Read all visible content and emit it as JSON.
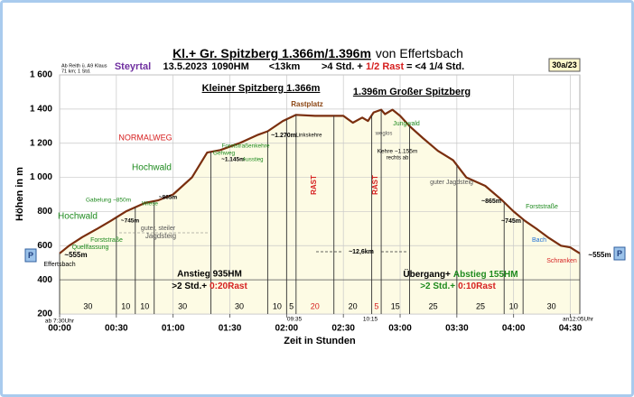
{
  "chart_data": {
    "type": "line",
    "title": "Kl.+ Gr. Spitzberg 1.366m/1.396m",
    "title_suffix": "von Effertsbach",
    "subtitle_parts": [
      {
        "text": "Steyrtal",
        "color": "#7030a0"
      },
      {
        "text": "13.5.2023",
        "color": "#000000"
      },
      {
        "text": "1090HM",
        "color": "#000000"
      },
      {
        "text": "<13km",
        "color": "#000000"
      },
      {
        "text": ">4 Std. +",
        "color": "#000000"
      },
      {
        "text": "1/2 Rast",
        "color": "#d62020"
      },
      {
        "text": "= <4 1/4 Std.",
        "color": "#000000"
      }
    ],
    "badge": "30a/23",
    "parking": [
      "P",
      "P"
    ],
    "y_label": "Höhen in m",
    "x_label": "Zeit in Stunden",
    "xlim": [
      0,
      275
    ],
    "ylim": [
      200,
      1600
    ],
    "xticks": [
      {
        "value": 0,
        "label": "00:00"
      },
      {
        "value": 30,
        "label": "00:30"
      },
      {
        "value": 60,
        "label": "01:00"
      },
      {
        "value": 90,
        "label": "01:30"
      },
      {
        "value": 120,
        "label": "02:00"
      },
      {
        "value": 150,
        "label": "02:30"
      },
      {
        "value": 180,
        "label": "03:00"
      },
      {
        "value": 210,
        "label": "03:30"
      },
      {
        "value": 240,
        "label": "04:00"
      },
      {
        "value": 270,
        "label": "04:30"
      }
    ],
    "yticks": [
      200,
      400,
      600,
      800,
      {
        "value": 1000,
        "label": "1 000"
      },
      {
        "value": 1200,
        "label": "1 200"
      },
      {
        "value": 1400,
        "label": "1 400"
      },
      {
        "value": 1600,
        "label": "1 600"
      }
    ],
    "grid": true,
    "x": [
      0,
      5,
      12,
      20,
      27,
      35,
      45,
      52,
      60,
      70,
      78,
      85,
      95,
      105,
      110,
      118,
      125,
      135,
      140,
      145,
      150,
      155,
      160,
      163,
      166,
      170,
      172,
      176,
      180,
      185,
      192,
      200,
      208,
      215,
      225,
      234,
      240,
      246,
      252,
      258,
      265,
      270,
      275
    ],
    "series": [
      {
        "name": "Höhenprofil",
        "color": "#7a2e0e",
        "values": [
          555,
          600,
          650,
          700,
          745,
          800,
          850,
          865,
          900,
          1000,
          1145,
          1160,
          1200,
          1250,
          1270,
          1330,
          1366,
          1360,
          1360,
          1360,
          1360,
          1320,
          1350,
          1330,
          1380,
          1396,
          1370,
          1396,
          1360,
          1300,
          1230,
          1155,
          1100,
          1000,
          950,
          865,
          800,
          745,
          700,
          650,
          600,
          590,
          555
        ]
      }
    ],
    "area_color": "#fdfbe4",
    "segments": [
      {
        "value": 30,
        "color": "#000000"
      },
      {
        "value": 10,
        "color": "#000000"
      },
      {
        "value": 10,
        "color": "#000000"
      },
      {
        "value": 30,
        "color": "#000000"
      },
      {
        "value": 30,
        "color": "#000000"
      },
      {
        "value": 10,
        "color": "#000000"
      },
      {
        "value": 5,
        "color": "#000000"
      },
      {
        "value": 20,
        "color": "#d62020"
      },
      {
        "value": 20,
        "color": "#000000"
      },
      {
        "value": 5,
        "color": "#d62020"
      },
      {
        "value": 15,
        "color": "#000000"
      },
      {
        "value": 25,
        "color": "#000000"
      },
      {
        "value": 25,
        "color": "#000000"
      },
      {
        "value": 10,
        "color": "#000000"
      },
      {
        "value": 30,
        "color": "#000000"
      }
    ],
    "annotations": [
      {
        "text": "Kleiner Spitzberg 1.366m",
        "color": "#000000"
      },
      {
        "text": "1.396m Großer Spitzberg",
        "color": "#000000"
      },
      {
        "text": "Rastplatz",
        "color": "#8b4513"
      },
      {
        "text": "NORMALWEG",
        "color": "#d62020"
      },
      {
        "text": "Hochwald",
        "color": "#1e8a1e"
      },
      {
        "text": "Hochwald",
        "color": "#1e8a1e"
      },
      {
        "text": "Gabelung ~850m",
        "color": "#1e8a1e"
      },
      {
        "text": "Wiese",
        "color": "#1e8a1e"
      },
      {
        "text": "~865m",
        "color": "#000000"
      },
      {
        "text": "~745m",
        "color": "#000000"
      },
      {
        "text": "Forststraße",
        "color": "#1e8a1e"
      },
      {
        "text": "Quellfassung",
        "color": "#1e8a1e"
      },
      {
        "text": "Effertsbach",
        "color": "#000000"
      },
      {
        "text": "~555m",
        "color": "#000000"
      },
      {
        "text": "guter, steiler",
        "color": "#555555"
      },
      {
        "text": "Jagdsteig",
        "color": "#555555"
      },
      {
        "text": "Forststraßenkehre",
        "color": "#1e8a1e"
      },
      {
        "text": "Gehweg",
        "color": "#1e8a1e"
      },
      {
        "text": "~1.145m",
        "color": "#000000"
      },
      {
        "text": "Ausstieg",
        "color": "#1e8a1e"
      },
      {
        "text": "~1.270m",
        "color": "#000000"
      },
      {
        "text": "Linkskehre",
        "color": "#000000"
      },
      {
        "text": "RAST",
        "color": "#d62020"
      },
      {
        "text": "RAST",
        "color": "#d62020"
      },
      {
        "text": "~12,6km",
        "color": "#000000"
      },
      {
        "text": "Jungwald",
        "color": "#1e8a1e"
      },
      {
        "text": "weglos",
        "color": "#555555"
      },
      {
        "text": "Kehre ~1.155m",
        "color": "#000000"
      },
      {
        "text": "rechts ab",
        "color": "#000000"
      },
      {
        "text": "guter Jagdsteig",
        "color": "#555555"
      },
      {
        "text": "~865m",
        "color": "#000000"
      },
      {
        "text": "~745m",
        "color": "#000000"
      },
      {
        "text": "Forststraße",
        "color": "#1e8a1e"
      },
      {
        "text": "Bach",
        "color": "#1e6fd6"
      },
      {
        "text": "Schranken",
        "color": "#d62020"
      },
      {
        "text": "~555m",
        "color": "#000000"
      },
      {
        "text": "Ab Reith ü. A9 Klaus",
        "color": "#000000"
      },
      {
        "text": "71 km; 1 Std.",
        "color": "#000000"
      },
      {
        "text": "ab 7:30Uhr",
        "color": "#000000"
      },
      {
        "text": "09:35",
        "color": "#000000"
      },
      {
        "text": "10:15",
        "color": "#000000"
      },
      {
        "text": "an12:05Uhr",
        "color": "#000000"
      },
      {
        "text": "Anstieg 935HM",
        "color": "#000000"
      },
      {
        "parts": [
          {
            "text": ">2 Std.+",
            "color": "#000000"
          },
          {
            "text": "0:20Rast",
            "color": "#d62020"
          }
        ]
      },
      {
        "parts": [
          {
            "text": "Übergang+",
            "color": "#000000"
          },
          {
            "text": "Abstieg 155HM",
            "color": "#1e8a1e"
          }
        ]
      },
      {
        "parts": [
          {
            "text": ">2 Std.+",
            "color": "#1e8a1e"
          },
          {
            "text": "0:10Rast",
            "color": "#d62020"
          }
        ]
      }
    ]
  }
}
